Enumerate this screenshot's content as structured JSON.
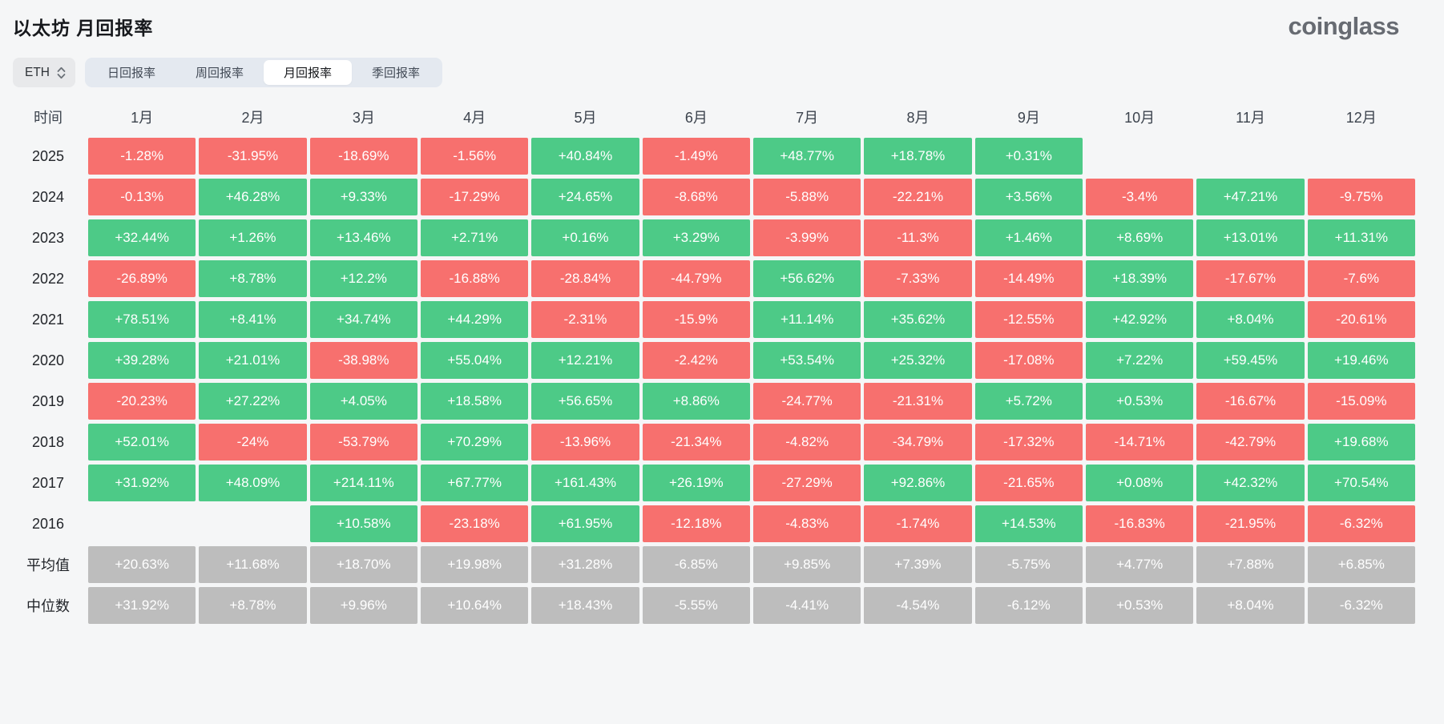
{
  "header": {
    "title": "以太坊 月回报率",
    "logo": "coinglass"
  },
  "controls": {
    "symbol": "ETH",
    "symbol_icon": "chevron-up-down-icon",
    "tabs": [
      {
        "label": "日回报率",
        "active": false
      },
      {
        "label": "周回报率",
        "active": false
      },
      {
        "label": "月回报率",
        "active": true
      },
      {
        "label": "季回报率",
        "active": false
      }
    ]
  },
  "chart_data": {
    "type": "heatmap",
    "title": "以太坊 月回报率",
    "colors": {
      "positive": "#4dca87",
      "negative": "#f7706e",
      "summary": "#bdbdbd"
    },
    "columns": [
      "时间",
      "1月",
      "2月",
      "3月",
      "4月",
      "5月",
      "6月",
      "7月",
      "8月",
      "9月",
      "10月",
      "11月",
      "12月"
    ],
    "rows": [
      {
        "label": "2025",
        "summary": false,
        "values": [
          "-1.28%",
          "-31.95%",
          "-18.69%",
          "-1.56%",
          "+40.84%",
          "-1.49%",
          "+48.77%",
          "+18.78%",
          "+0.31%",
          "",
          "",
          ""
        ]
      },
      {
        "label": "2024",
        "summary": false,
        "values": [
          "-0.13%",
          "+46.28%",
          "+9.33%",
          "-17.29%",
          "+24.65%",
          "-8.68%",
          "-5.88%",
          "-22.21%",
          "+3.56%",
          "-3.4%",
          "+47.21%",
          "-9.75%"
        ]
      },
      {
        "label": "2023",
        "summary": false,
        "values": [
          "+32.44%",
          "+1.26%",
          "+13.46%",
          "+2.71%",
          "+0.16%",
          "+3.29%",
          "-3.99%",
          "-11.3%",
          "+1.46%",
          "+8.69%",
          "+13.01%",
          "+11.31%"
        ]
      },
      {
        "label": "2022",
        "summary": false,
        "values": [
          "-26.89%",
          "+8.78%",
          "+12.2%",
          "-16.88%",
          "-28.84%",
          "-44.79%",
          "+56.62%",
          "-7.33%",
          "-14.49%",
          "+18.39%",
          "-17.67%",
          "-7.6%"
        ]
      },
      {
        "label": "2021",
        "summary": false,
        "values": [
          "+78.51%",
          "+8.41%",
          "+34.74%",
          "+44.29%",
          "-2.31%",
          "-15.9%",
          "+11.14%",
          "+35.62%",
          "-12.55%",
          "+42.92%",
          "+8.04%",
          "-20.61%"
        ]
      },
      {
        "label": "2020",
        "summary": false,
        "values": [
          "+39.28%",
          "+21.01%",
          "-38.98%",
          "+55.04%",
          "+12.21%",
          "-2.42%",
          "+53.54%",
          "+25.32%",
          "-17.08%",
          "+7.22%",
          "+59.45%",
          "+19.46%"
        ]
      },
      {
        "label": "2019",
        "summary": false,
        "values": [
          "-20.23%",
          "+27.22%",
          "+4.05%",
          "+18.58%",
          "+56.65%",
          "+8.86%",
          "-24.77%",
          "-21.31%",
          "+5.72%",
          "+0.53%",
          "-16.67%",
          "-15.09%"
        ]
      },
      {
        "label": "2018",
        "summary": false,
        "values": [
          "+52.01%",
          "-24%",
          "-53.79%",
          "+70.29%",
          "-13.96%",
          "-21.34%",
          "-4.82%",
          "-34.79%",
          "-17.32%",
          "-14.71%",
          "-42.79%",
          "+19.68%"
        ]
      },
      {
        "label": "2017",
        "summary": false,
        "values": [
          "+31.92%",
          "+48.09%",
          "+214.11%",
          "+67.77%",
          "+161.43%",
          "+26.19%",
          "-27.29%",
          "+92.86%",
          "-21.65%",
          "+0.08%",
          "+42.32%",
          "+70.54%"
        ]
      },
      {
        "label": "2016",
        "summary": false,
        "values": [
          "",
          "",
          "+10.58%",
          "-23.18%",
          "+61.95%",
          "-12.18%",
          "-4.83%",
          "-1.74%",
          "+14.53%",
          "-16.83%",
          "-21.95%",
          "-6.32%"
        ]
      },
      {
        "label": "平均值",
        "summary": true,
        "values": [
          "+20.63%",
          "+11.68%",
          "+18.70%",
          "+19.98%",
          "+31.28%",
          "-6.85%",
          "+9.85%",
          "+7.39%",
          "-5.75%",
          "+4.77%",
          "+7.88%",
          "+6.85%"
        ]
      },
      {
        "label": "中位数",
        "summary": true,
        "values": [
          "+31.92%",
          "+8.78%",
          "+9.96%",
          "+10.64%",
          "+18.43%",
          "-5.55%",
          "-4.41%",
          "-4.54%",
          "-6.12%",
          "+0.53%",
          "+8.04%",
          "-6.32%"
        ]
      }
    ]
  }
}
